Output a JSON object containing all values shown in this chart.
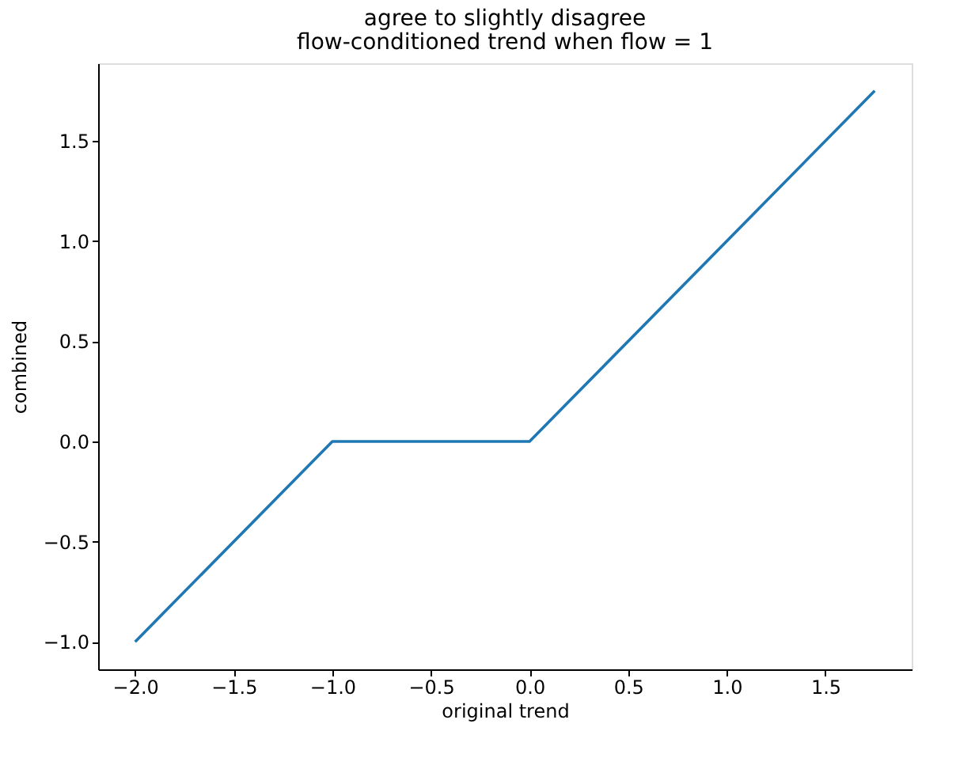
{
  "chart_data": {
    "type": "line",
    "title": "agree to slightly disagree",
    "subtitle": "flow-conditioned trend when flow = 1",
    "xlabel": "original trend",
    "ylabel": "combined",
    "x": [
      -2.0,
      -1.0,
      0.0,
      1.75
    ],
    "series": [
      {
        "color": "#1f77b4",
        "values": [
          -1.0,
          0.0,
          0.0,
          1.75
        ]
      }
    ],
    "xlim": [
      -2.1875,
      1.9375
    ],
    "ylim": [
      -1.1375,
      1.8875
    ],
    "xticks": [
      {
        "value": -2.0,
        "label": "−2.0"
      },
      {
        "value": -1.5,
        "label": "−1.5"
      },
      {
        "value": -1.0,
        "label": "−1.0"
      },
      {
        "value": -0.5,
        "label": "−0.5"
      },
      {
        "value": 0.0,
        "label": "0.0"
      },
      {
        "value": 0.5,
        "label": "0.5"
      },
      {
        "value": 1.0,
        "label": "1.0"
      },
      {
        "value": 1.5,
        "label": "1.5"
      }
    ],
    "yticks": [
      {
        "value": -1.0,
        "label": "−1.0"
      },
      {
        "value": -0.5,
        "label": "−0.5"
      },
      {
        "value": 0.0,
        "label": "0.0"
      },
      {
        "value": 0.5,
        "label": "0.5"
      },
      {
        "value": 1.0,
        "label": "1.0"
      },
      {
        "value": 1.5,
        "label": "1.5"
      }
    ],
    "grid": false,
    "legend": false,
    "marker": "none",
    "line_style": "solid"
  }
}
